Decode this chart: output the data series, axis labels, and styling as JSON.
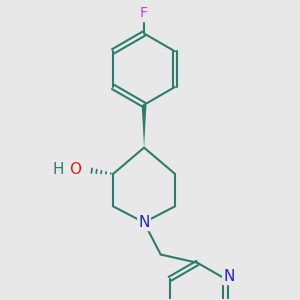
{
  "fig_bg": "#e8e8e8",
  "bond_color": "#2d7d6e",
  "bond_width": 1.5,
  "atom_colors": {
    "F": "#cc44cc",
    "O": "#dd2222",
    "N": "#2222cc",
    "H": "#2d7d6e"
  }
}
